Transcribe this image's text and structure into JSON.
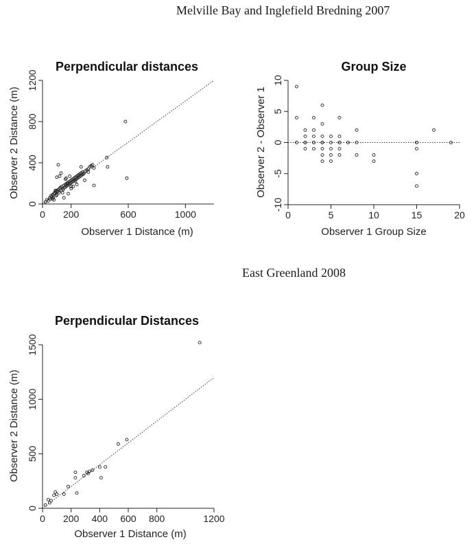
{
  "headings": {
    "section1": "Melville Bay and Inglefield Bredning 2007",
    "section2": "East Greenland 2008"
  },
  "colors": {
    "ink": "#222222",
    "background": "#ffffff"
  },
  "chart_data": [
    {
      "id": "perp2007",
      "type": "scatter",
      "title": "Perpendicular distances",
      "xlabel": "Observer 1 Distance (m)",
      "ylabel": "Observer 2 Distance (m)",
      "xlim": [
        0,
        1200
      ],
      "ylim": [
        0,
        1200
      ],
      "xticks": [
        0,
        200,
        600,
        1000
      ],
      "yticks": [
        0,
        400,
        800,
        1200
      ],
      "reference_line": {
        "slope": 1,
        "intercept": 0,
        "style": "dotted"
      },
      "grid": false,
      "x": [
        20,
        30,
        40,
        50,
        55,
        60,
        65,
        70,
        75,
        80,
        85,
        90,
        95,
        100,
        100,
        105,
        110,
        115,
        120,
        125,
        130,
        135,
        140,
        145,
        150,
        155,
        160,
        165,
        170,
        175,
        180,
        185,
        190,
        195,
        200,
        205,
        210,
        215,
        220,
        225,
        230,
        235,
        240,
        245,
        250,
        255,
        260,
        265,
        270,
        275,
        280,
        285,
        290,
        300,
        310,
        320,
        330,
        340,
        350,
        360,
        100,
        110,
        120,
        130,
        150,
        165,
        180,
        190,
        200,
        215,
        230,
        250,
        270,
        295,
        320,
        340,
        360,
        450,
        455,
        580,
        590,
        70,
        80,
        90,
        140,
        160,
        175,
        200,
        240
      ],
      "y": [
        20,
        40,
        30,
        60,
        50,
        80,
        70,
        90,
        60,
        100,
        110,
        120,
        80,
        130,
        90,
        120,
        140,
        110,
        150,
        160,
        130,
        170,
        150,
        140,
        180,
        160,
        190,
        170,
        200,
        180,
        210,
        190,
        220,
        200,
        230,
        210,
        240,
        220,
        250,
        230,
        260,
        240,
        270,
        250,
        280,
        260,
        290,
        270,
        300,
        280,
        310,
        290,
        300,
        320,
        330,
        340,
        360,
        370,
        380,
        350,
        260,
        380,
        270,
        300,
        60,
        250,
        100,
        270,
        150,
        170,
        220,
        280,
        360,
        230,
        310,
        370,
        180,
        450,
        360,
        800,
        250,
        50,
        40,
        130,
        110,
        240,
        200,
        170,
        190
      ]
    },
    {
      "id": "group2007",
      "type": "scatter",
      "title": "Group Size",
      "xlabel": "Observer 1 Group Size",
      "ylabel": "Observer 2 - Observer 1",
      "xlim": [
        0,
        20
      ],
      "ylim": [
        -10,
        10
      ],
      "xticks": [
        0,
        5,
        10,
        15,
        20
      ],
      "yticks": [
        -10,
        -5,
        0,
        5,
        10
      ],
      "reference_line": {
        "type": "horizontal",
        "y": 0,
        "style": "dotted"
      },
      "grid": false,
      "x": [
        1,
        1,
        1,
        2,
        2,
        2,
        2,
        2,
        3,
        3,
        3,
        3,
        3,
        3,
        4,
        4,
        4,
        4,
        4,
        4,
        4,
        4,
        5,
        5,
        5,
        5,
        5,
        6,
        6,
        6,
        6,
        6,
        6,
        7,
        8,
        8,
        8,
        10,
        10,
        15,
        15,
        15,
        15,
        15,
        17,
        19
      ],
      "y": [
        9,
        4,
        0,
        2,
        1,
        0,
        -1,
        0,
        4,
        2,
        1,
        0,
        -1,
        0,
        6,
        3,
        1,
        0,
        -1,
        -2,
        -3,
        0,
        1,
        0,
        -1,
        -2,
        -3,
        4,
        1,
        0,
        -1,
        -2,
        0,
        0,
        2,
        0,
        -2,
        -2,
        -3,
        0,
        -1,
        -5,
        -7,
        0,
        2,
        0
      ]
    },
    {
      "id": "perp2008",
      "type": "scatter",
      "title": "Perpendicular Distances",
      "xlabel": "Observer 1 Distance (m)",
      "ylabel": "Observer 2 Distance (m)",
      "xlim": [
        0,
        1200
      ],
      "ylim": [
        0,
        1500
      ],
      "xticks": [
        0,
        200,
        400,
        600,
        800,
        1200
      ],
      "yticks": [
        0,
        500,
        1000,
        1500
      ],
      "reference_line": {
        "slope": 1,
        "intercept": 0,
        "style": "dotted"
      },
      "grid": false,
      "x": [
        20,
        40,
        50,
        60,
        80,
        90,
        100,
        150,
        180,
        230,
        230,
        240,
        290,
        310,
        320,
        330,
        350,
        400,
        410,
        440,
        530,
        590,
        1100
      ],
      "y": [
        30,
        80,
        50,
        70,
        120,
        150,
        130,
        130,
        200,
        330,
        280,
        140,
        300,
        330,
        320,
        340,
        350,
        380,
        280,
        380,
        590,
        630,
        1520
      ]
    }
  ]
}
